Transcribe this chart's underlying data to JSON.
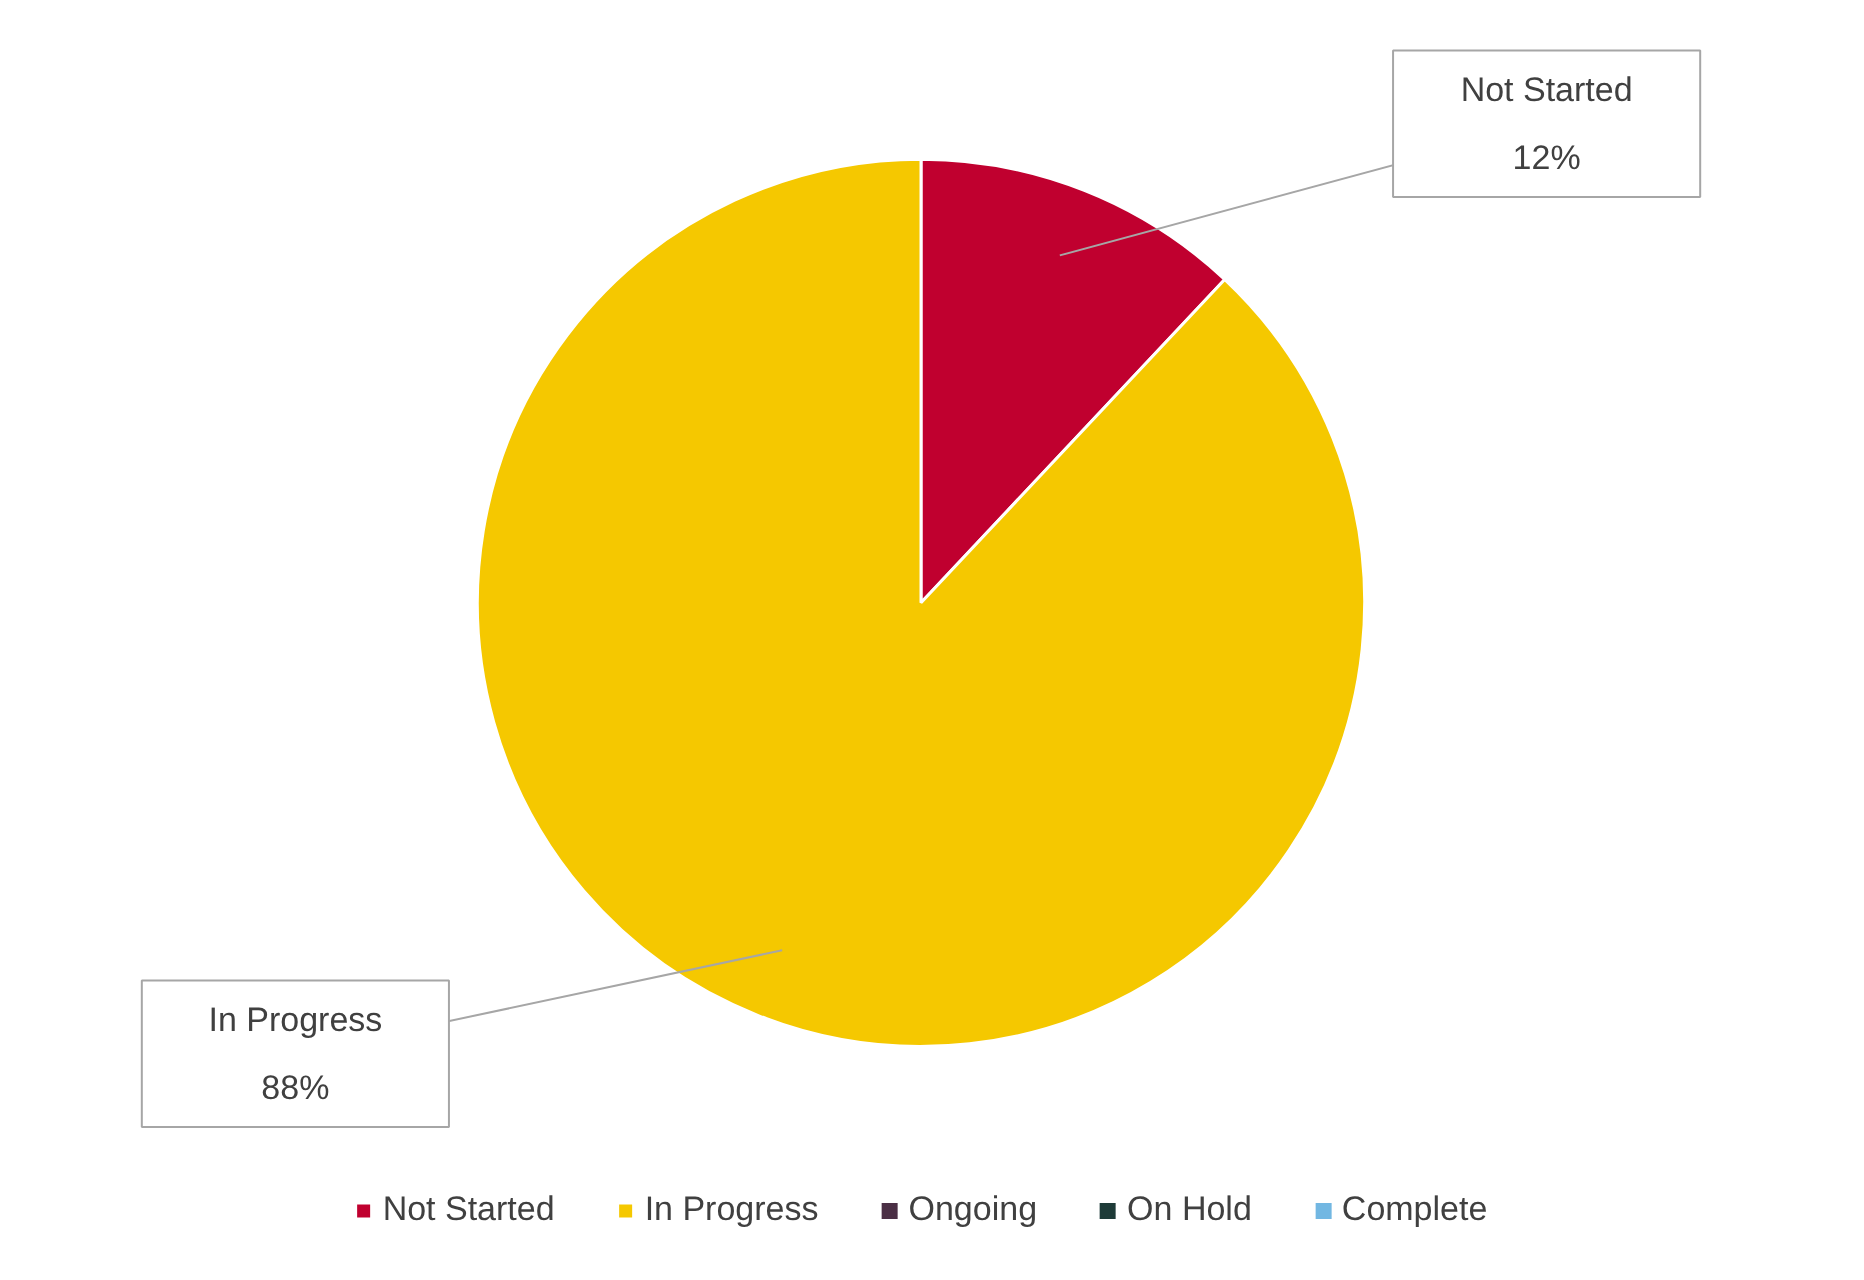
{
  "chart_data": {
    "type": "pie",
    "categories": [
      "Not Started",
      "In Progress",
      "Ongoing",
      "On Hold",
      "Complete"
    ],
    "values": [
      12,
      88,
      0,
      0,
      0
    ],
    "colors": [
      "#c0002f",
      "#f5c800",
      "#4b2f45",
      "#1e3b38",
      "#72b7e2"
    ],
    "value_labels": [
      "12%",
      "88%",
      null,
      null,
      null
    ],
    "legend": "bottom"
  }
}
